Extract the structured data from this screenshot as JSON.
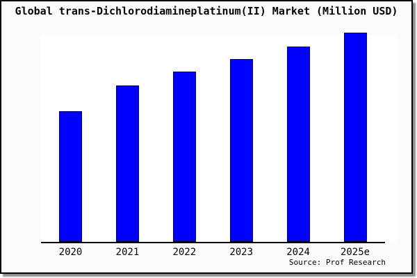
{
  "title": "Global trans-Dichlorodiamineplatinum(II) Market (Million USD)",
  "source": "Source: Prof Research",
  "chart_data": {
    "type": "bar",
    "title": "Global trans-Dichlorodiamineplatinum(II) Market (Million USD)",
    "categories": [
      "2020",
      "2021",
      "2022",
      "2023",
      "2024",
      "2025e"
    ],
    "values_percent_of_max": [
      62.5,
      74.8,
      81.4,
      87.4,
      93.4,
      100
    ],
    "values_note": "Y-axis is unlabeled; values estimated as percent of tallest bar (2025e = 100)",
    "xlabel": "",
    "ylabel": "",
    "grid": false,
    "legend": "none",
    "bar_fill": "#0000FF",
    "bar_border": "#000000",
    "axis_color": "#000000"
  }
}
